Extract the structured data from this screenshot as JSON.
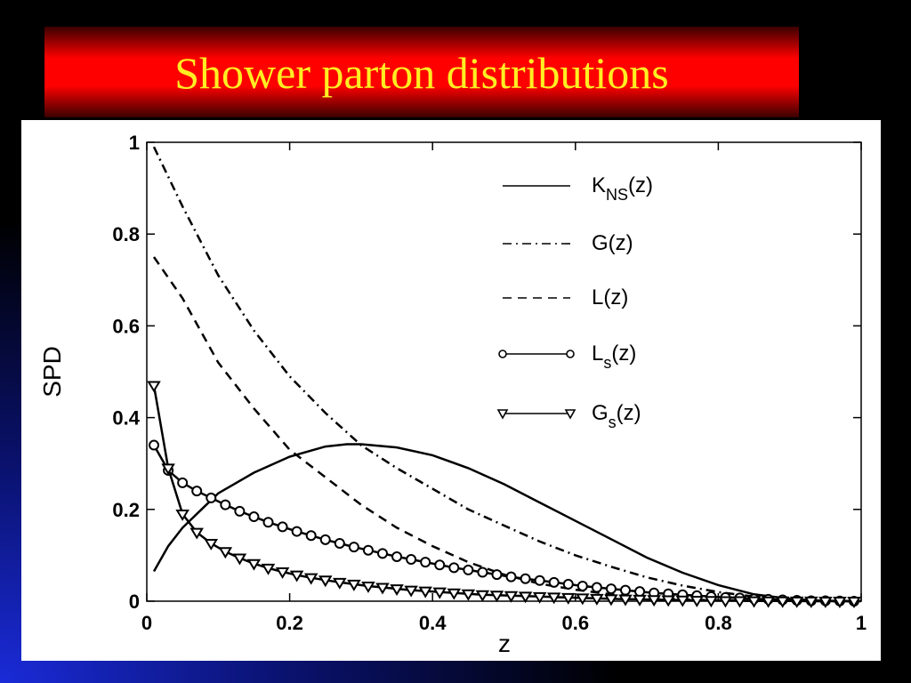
{
  "slide": {
    "title": "Shower parton distributions",
    "title_color": "#ffee22",
    "banner_color": "#ff0000"
  },
  "chart_data": {
    "type": "line",
    "xlabel": "z",
    "ylabel": "SPD",
    "xlim": [
      0,
      1
    ],
    "ylim": [
      0,
      1
    ],
    "xticks": [
      "0",
      "0.2",
      "0.4",
      "0.6",
      "0.8",
      "1"
    ],
    "yticks": [
      "0",
      "0.2",
      "0.4",
      "0.6",
      "0.8",
      "1"
    ],
    "grid": false,
    "legend_position": "top-right",
    "series": [
      {
        "name": "K_NS(z)",
        "label_main": "K",
        "label_sub": "NS",
        "label_tail": "(z)",
        "style": "solid",
        "marker": "none",
        "x": [
          0.01,
          0.03,
          0.05,
          0.08,
          0.1,
          0.15,
          0.2,
          0.25,
          0.28,
          0.3,
          0.35,
          0.4,
          0.45,
          0.5,
          0.55,
          0.6,
          0.65,
          0.7,
          0.75,
          0.8,
          0.85,
          0.9,
          0.95,
          1.0
        ],
        "y": [
          0.065,
          0.12,
          0.16,
          0.205,
          0.235,
          0.28,
          0.315,
          0.337,
          0.342,
          0.342,
          0.335,
          0.318,
          0.29,
          0.255,
          0.215,
          0.175,
          0.135,
          0.095,
          0.062,
          0.035,
          0.015,
          0.005,
          0.0005,
          0.0
        ]
      },
      {
        "name": "G(z)",
        "label_main": "G",
        "label_sub": "",
        "label_tail": "(z)",
        "style": "dashdot",
        "marker": "none",
        "x": [
          0.01,
          0.05,
          0.1,
          0.15,
          0.2,
          0.25,
          0.3,
          0.35,
          0.4,
          0.45,
          0.5,
          0.55,
          0.6,
          0.65,
          0.7,
          0.75,
          0.8,
          0.85,
          0.9,
          0.95,
          1.0
        ],
        "y": [
          0.99,
          0.86,
          0.71,
          0.59,
          0.49,
          0.41,
          0.34,
          0.29,
          0.245,
          0.2,
          0.165,
          0.13,
          0.1,
          0.075,
          0.052,
          0.034,
          0.02,
          0.01,
          0.004,
          0.001,
          0.0
        ]
      },
      {
        "name": "L(z)",
        "label_main": "L",
        "label_sub": "",
        "label_tail": "(z)",
        "style": "dashed",
        "marker": "none",
        "x": [
          0.01,
          0.05,
          0.1,
          0.15,
          0.2,
          0.25,
          0.3,
          0.35,
          0.4,
          0.45,
          0.5,
          0.55,
          0.6,
          0.65,
          0.7,
          0.75,
          0.8,
          0.85,
          0.9,
          0.95,
          1.0
        ],
        "y": [
          0.75,
          0.66,
          0.52,
          0.42,
          0.33,
          0.27,
          0.21,
          0.16,
          0.12,
          0.085,
          0.058,
          0.038,
          0.025,
          0.015,
          0.008,
          0.004,
          0.002,
          0.001,
          0.0003,
          0.0,
          0.0
        ]
      },
      {
        "name": "L_s(z)",
        "label_main": "L",
        "label_sub": "s",
        "label_tail": "(z)",
        "style": "solid",
        "marker": "circle",
        "x": [
          0.01,
          0.03,
          0.05,
          0.07,
          0.09,
          0.11,
          0.13,
          0.15,
          0.17,
          0.19,
          0.21,
          0.23,
          0.25,
          0.27,
          0.29,
          0.31,
          0.33,
          0.35,
          0.37,
          0.39,
          0.41,
          0.43,
          0.45,
          0.47,
          0.49,
          0.51,
          0.53,
          0.55,
          0.57,
          0.59,
          0.61,
          0.63,
          0.65,
          0.67,
          0.69,
          0.71,
          0.73,
          0.75,
          0.77,
          0.79,
          0.81,
          0.83,
          0.85,
          0.87,
          0.89,
          0.91,
          0.93,
          0.95,
          0.97,
          0.99
        ],
        "y": [
          0.34,
          0.285,
          0.258,
          0.24,
          0.225,
          0.21,
          0.196,
          0.184,
          0.172,
          0.162,
          0.152,
          0.143,
          0.134,
          0.126,
          0.118,
          0.111,
          0.104,
          0.097,
          0.091,
          0.085,
          0.079,
          0.073,
          0.068,
          0.063,
          0.058,
          0.053,
          0.049,
          0.045,
          0.041,
          0.037,
          0.033,
          0.03,
          0.027,
          0.024,
          0.021,
          0.018,
          0.016,
          0.014,
          0.012,
          0.01,
          0.008,
          0.007,
          0.005,
          0.004,
          0.003,
          0.002,
          0.001,
          0.001,
          0.0005,
          0.0
        ]
      },
      {
        "name": "G_s(z)",
        "label_main": "G",
        "label_sub": "s",
        "label_tail": "(z)",
        "style": "solid",
        "marker": "triangle-down",
        "x": [
          0.01,
          0.03,
          0.05,
          0.07,
          0.09,
          0.11,
          0.13,
          0.15,
          0.17,
          0.19,
          0.21,
          0.23,
          0.25,
          0.27,
          0.29,
          0.31,
          0.33,
          0.35,
          0.37,
          0.39,
          0.41,
          0.43,
          0.45,
          0.47,
          0.49,
          0.51,
          0.53,
          0.55,
          0.57,
          0.59,
          0.61,
          0.63,
          0.65,
          0.67,
          0.69,
          0.71,
          0.73,
          0.75,
          0.77,
          0.79,
          0.81,
          0.83,
          0.85,
          0.87,
          0.89,
          0.91,
          0.93,
          0.95,
          0.97,
          0.99
        ],
        "y": [
          0.47,
          0.29,
          0.19,
          0.15,
          0.126,
          0.108,
          0.094,
          0.082,
          0.072,
          0.064,
          0.057,
          0.051,
          0.046,
          0.041,
          0.037,
          0.033,
          0.03,
          0.027,
          0.024,
          0.022,
          0.02,
          0.018,
          0.016,
          0.014,
          0.013,
          0.012,
          0.011,
          0.01,
          0.009,
          0.008,
          0.007,
          0.006,
          0.005,
          0.0045,
          0.004,
          0.0035,
          0.003,
          0.0025,
          0.002,
          0.0015,
          0.001,
          0.001,
          0.0008,
          0.0006,
          0.0004,
          0.0003,
          0.0002,
          0.0001,
          0.0,
          0.0
        ]
      }
    ]
  }
}
